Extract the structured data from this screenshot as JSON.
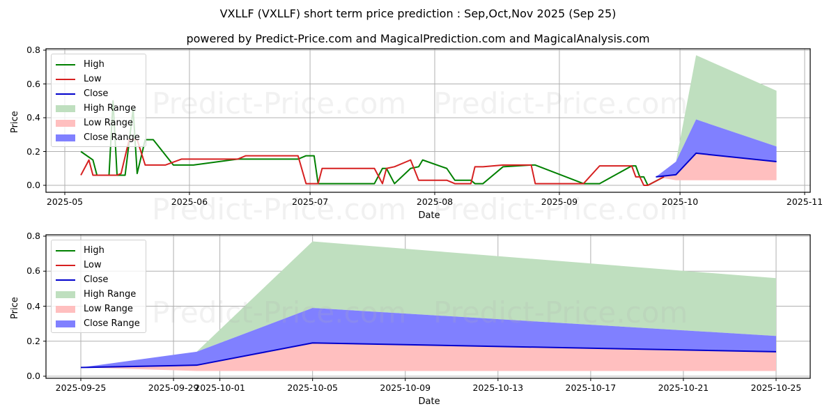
{
  "header": {
    "title": "VXLLF (VXLLF) short term price prediction : Sep,Oct,Nov 2025 (Sep 25)",
    "subtitle": "powered by Predict-Price.com and MagicalPrediction.com and MagicalAnalysis.com"
  },
  "watermark": "Predict-Price.com",
  "colors": {
    "high": "#008000",
    "low": "#d62020",
    "close": "#0000cc",
    "high_range": "#bfdfbf",
    "low_range": "#ffbfbf",
    "close_range": "#8080ff",
    "grid": "#b0b0b0"
  },
  "legend": {
    "items": [
      {
        "label": "High",
        "kind": "line",
        "color": "#008000"
      },
      {
        "label": "Low",
        "kind": "line",
        "color": "#d62020"
      },
      {
        "label": "Close",
        "kind": "line",
        "color": "#0000cc"
      },
      {
        "label": "High Range",
        "kind": "patch",
        "color": "#bfdfbf"
      },
      {
        "label": "Low Range",
        "kind": "patch",
        "color": "#ffbfbf"
      },
      {
        "label": "Close Range",
        "kind": "patch",
        "color": "#8080ff"
      }
    ]
  },
  "chart_data": [
    {
      "type": "line",
      "title": "VXLLF (VXLLF) short term price prediction : Sep,Oct,Nov 2025 (Sep 25)",
      "xlabel": "Date",
      "ylabel": "Price",
      "ylim": [
        0,
        0.8
      ],
      "yticks": [
        "0.0",
        "0.2",
        "0.4",
        "0.6",
        "0.8"
      ],
      "xticks": [
        "2025-05",
        "2025-06",
        "2025-07",
        "2025-08",
        "2025-09",
        "2025-10",
        "2025-11"
      ],
      "grid": true,
      "legend_position": "upper left",
      "series": [
        {
          "name": "High",
          "x": [
            "2025-05-05",
            "2025-05-08",
            "2025-05-09",
            "2025-05-12",
            "2025-05-13",
            "2025-05-14",
            "2025-05-16",
            "2025-05-18",
            "2025-05-19",
            "2025-05-21",
            "2025-05-23",
            "2025-05-28",
            "2025-06-02",
            "2025-06-13",
            "2025-06-17",
            "2025-06-28",
            "2025-06-30",
            "2025-07-02",
            "2025-07-03",
            "2025-07-17",
            "2025-07-19",
            "2025-07-20",
            "2025-07-22",
            "2025-07-26",
            "2025-07-28",
            "2025-07-29",
            "2025-08-04",
            "2025-08-06",
            "2025-08-10",
            "2025-08-11",
            "2025-08-13",
            "2025-08-18",
            "2025-08-25",
            "2025-08-26",
            "2025-09-07",
            "2025-09-11",
            "2025-09-19",
            "2025-09-20",
            "2025-09-21",
            "2025-09-22",
            "2025-09-23",
            "2025-09-27"
          ],
          "values": [
            0.2,
            0.15,
            0.06,
            0.06,
            0.5,
            0.06,
            0.06,
            0.45,
            0.07,
            0.27,
            0.27,
            0.12,
            0.12,
            0.155,
            0.155,
            0.155,
            0.175,
            0.175,
            0.01,
            0.01,
            0.1,
            0.1,
            0.01,
            0.1,
            0.11,
            0.15,
            0.1,
            0.03,
            0.03,
            0.01,
            0.01,
            0.11,
            0.12,
            0.12,
            0.01,
            0.01,
            0.115,
            0.115,
            0.05,
            0.05,
            0.0,
            0.05
          ]
        },
        {
          "name": "Low",
          "x": [
            "2025-05-05",
            "2025-05-07",
            "2025-05-08",
            "2025-05-14",
            "2025-05-15",
            "2025-05-17",
            "2025-05-19",
            "2025-05-21",
            "2025-05-26",
            "2025-05-30",
            "2025-06-08",
            "2025-06-13",
            "2025-06-15",
            "2025-06-28",
            "2025-06-30",
            "2025-07-03",
            "2025-07-04",
            "2025-07-17",
            "2025-07-19",
            "2025-07-20",
            "2025-07-22",
            "2025-07-26",
            "2025-07-28",
            "2025-08-04",
            "2025-08-06",
            "2025-08-10",
            "2025-08-11",
            "2025-08-13",
            "2025-08-18",
            "2025-08-25",
            "2025-08-26",
            "2025-09-07",
            "2025-09-11",
            "2025-09-19",
            "2025-09-20",
            "2025-09-21",
            "2025-09-22",
            "2025-09-23",
            "2025-09-27"
          ],
          "values": [
            0.06,
            0.15,
            0.06,
            0.06,
            0.07,
            0.27,
            0.27,
            0.12,
            0.12,
            0.155,
            0.155,
            0.155,
            0.175,
            0.175,
            0.01,
            0.01,
            0.1,
            0.1,
            0.01,
            0.1,
            0.11,
            0.15,
            0.03,
            0.03,
            0.01,
            0.01,
            0.11,
            0.11,
            0.12,
            0.12,
            0.01,
            0.01,
            0.115,
            0.115,
            0.05,
            0.05,
            0.0,
            0.0,
            0.05
          ]
        },
        {
          "name": "Close",
          "x": [
            "2025-09-25",
            "2025-09-30",
            "2025-10-05",
            "2025-10-25"
          ],
          "values": [
            0.05,
            0.063,
            0.19,
            0.14
          ]
        },
        {
          "name": "High Range",
          "x": [
            "2025-09-25",
            "2025-09-30",
            "2025-10-05",
            "2025-10-25"
          ],
          "upper": [
            0.05,
            0.14,
            0.77,
            0.56
          ],
          "lower": [
            0.05,
            0.14,
            0.39,
            0.23
          ]
        },
        {
          "name": "Close Range",
          "x": [
            "2025-09-25",
            "2025-09-30",
            "2025-10-05",
            "2025-10-25"
          ],
          "upper": [
            0.05,
            0.14,
            0.39,
            0.23
          ],
          "lower": [
            0.05,
            0.063,
            0.19,
            0.14
          ]
        },
        {
          "name": "Low Range",
          "x": [
            "2025-09-25",
            "2025-09-30",
            "2025-10-05",
            "2025-10-25"
          ],
          "upper": [
            0.05,
            0.063,
            0.19,
            0.14
          ],
          "lower": [
            0.05,
            0.03,
            0.03,
            0.03
          ]
        }
      ]
    },
    {
      "type": "area",
      "title": "",
      "xlabel": "Date",
      "ylabel": "Price",
      "ylim": [
        0,
        0.8
      ],
      "yticks": [
        "0.0",
        "0.2",
        "0.4",
        "0.6",
        "0.8"
      ],
      "xticks": [
        "2025-09-25",
        "2025-09-29",
        "2025-10-01",
        "2025-10-05",
        "2025-10-09",
        "2025-10-13",
        "2025-10-17",
        "2025-10-21",
        "2025-10-25"
      ],
      "grid": true,
      "legend_position": "upper left",
      "x": [
        "2025-09-25",
        "2025-09-30",
        "2025-10-05",
        "2025-10-25"
      ],
      "series": [
        {
          "name": "Close",
          "values": [
            0.05,
            0.063,
            0.19,
            0.14
          ]
        },
        {
          "name": "High Range",
          "upper": [
            0.05,
            0.14,
            0.77,
            0.56
          ],
          "lower": [
            0.05,
            0.14,
            0.39,
            0.23
          ]
        },
        {
          "name": "Close Range",
          "upper": [
            0.05,
            0.14,
            0.39,
            0.23
          ],
          "lower": [
            0.05,
            0.063,
            0.19,
            0.14
          ]
        },
        {
          "name": "Low Range",
          "upper": [
            0.05,
            0.063,
            0.19,
            0.14
          ],
          "lower": [
            0.05,
            0.03,
            0.03,
            0.03
          ]
        }
      ]
    }
  ]
}
